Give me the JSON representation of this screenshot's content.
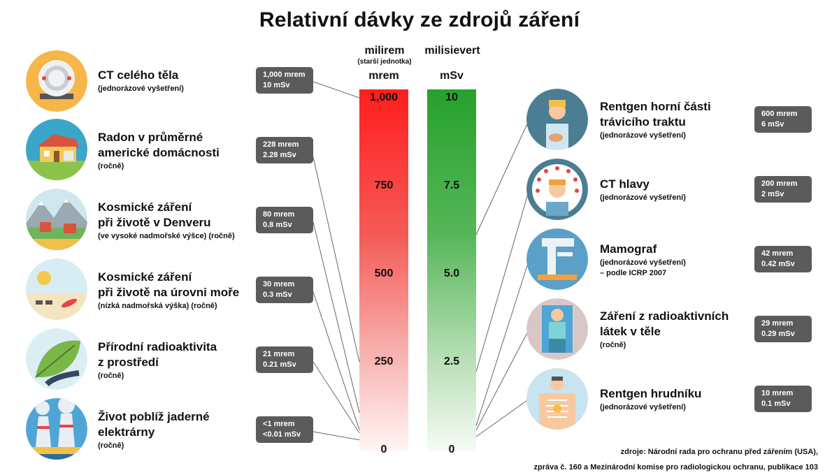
{
  "title": "Relativní dávky ze zdrojů záření",
  "columns": {
    "left": {
      "name": "milirem",
      "note": "(starší jednotka)",
      "unit": "mrem"
    },
    "right": {
      "name": "milisievert",
      "unit": "mSv"
    }
  },
  "scale": {
    "mrem": [
      "1,000",
      "750",
      "500",
      "250",
      "0"
    ],
    "msv": [
      "10",
      "7.5",
      "5.0",
      "2.5",
      "0"
    ]
  },
  "left_items": [
    {
      "title": "CT celého těla",
      "sub": "(jednorázové vyšetření)",
      "box1": "1,000 mrem",
      "box2": "10 mSv",
      "icon": "ct-scanner-icon",
      "mrem": 1000
    },
    {
      "title": "Radon v průměrné",
      "title2": "americké domácnosti",
      "sub": "(ročně)",
      "box1": "228 mrem",
      "box2": "2.28 mSv",
      "icon": "house-icon",
      "mrem": 228
    },
    {
      "title": "Kosmické záření",
      "title2": "při životě v Denveru",
      "sub": "(ve vysoké nadmořské výšce) (ročně)",
      "box1": "80 mrem",
      "box2": "0.8 mSv",
      "icon": "mountain-town-icon",
      "mrem": 80
    },
    {
      "title": "Kosmické záření",
      "title2": "při životě na úrovni moře",
      "sub": "(nízká nadmořská výška) (ročně)",
      "box1": "30 mrem",
      "box2": "0.3 mSv",
      "icon": "beach-icon",
      "mrem": 30
    },
    {
      "title": "Přírodní radioaktivita",
      "title2": "z prostředí",
      "sub": "(ročně)",
      "box1": "21 mrem",
      "box2": "0.21 mSv",
      "icon": "leaf-icon",
      "mrem": 21
    },
    {
      "title": "Život poblíž jaderné",
      "title2": "elektrárny",
      "sub": "(ročně)",
      "box1": "<1 mrem",
      "box2": "<0.01 mSv",
      "icon": "power-plant-icon",
      "mrem": 0.5
    }
  ],
  "right_items": [
    {
      "title": "Rentgen horní části",
      "title2": "trávicího traktu",
      "sub": "(jednorázové vyšetření)",
      "box1": "600 mrem",
      "box2": "6 mSv",
      "icon": "patient-abdomen-icon",
      "mrem": 600
    },
    {
      "title": "CT hlavy",
      "sub": "(jednorázové vyšetření)",
      "box1": "200 mrem",
      "box2": "2 mSv",
      "icon": "head-ct-icon",
      "mrem": 200
    },
    {
      "title": "Mamograf",
      "sub": "(jednorázové vyšetření)",
      "sub2": "– podle ICRP 2007",
      "box1": "42 mrem",
      "box2": "0.42 mSv",
      "icon": "mammograph-icon",
      "mrem": 42
    },
    {
      "title": "Záření z radioaktivních",
      "title2": "látek v těle",
      "sub": "(ročně)",
      "box1": "29 mrem",
      "box2": "0.29 mSv",
      "icon": "body-radiation-icon",
      "mrem": 29
    },
    {
      "title": "Rentgen hrudníku",
      "sub": "(jednorázové vyšetření)",
      "box1": "10 mrem",
      "box2": "0.1 mSv",
      "icon": "chest-xray-icon",
      "mrem": 10
    }
  ],
  "source": {
    "line1": "zdroje: Národní rada pro ochranu před zářením (USA),",
    "line2": "zpráva č. 160 a Mezinárodní komise pro radiologickou ochranu, publikace 103"
  },
  "colors": {
    "mrem_bar": "#ff1e1e",
    "msv_bar": "#27a12c",
    "box": "#5b5b5b"
  }
}
